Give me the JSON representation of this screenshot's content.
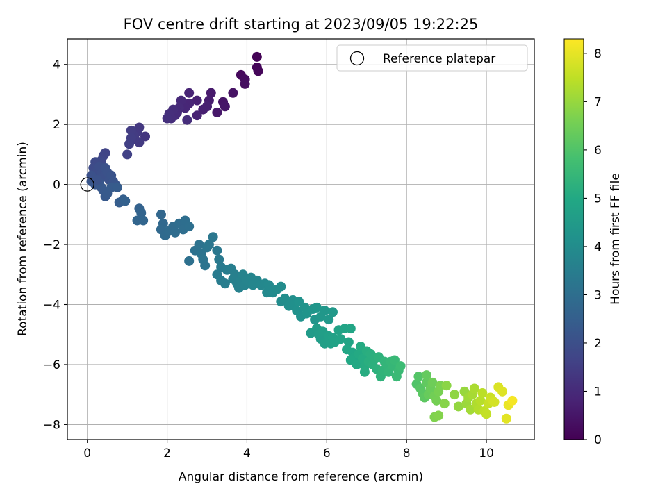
{
  "chart_data": {
    "type": "scatter",
    "title": "FOV centre drift starting at 2023/09/05 19:22:25",
    "xlabel": "Angular distance from reference (arcmin)",
    "ylabel": "Rotation from reference (arcmin)",
    "xlim": [
      -0.5,
      11.2
    ],
    "ylim": [
      -8.5,
      4.85
    ],
    "xticks": [
      0,
      2,
      4,
      6,
      8,
      10
    ],
    "xtick_labels": [
      "0",
      "2",
      "4",
      "6",
      "8",
      "10"
    ],
    "yticks": [
      -8,
      -6,
      -4,
      -2,
      0,
      2,
      4
    ],
    "ytick_labels": [
      "−8",
      "−6",
      "−4",
      "−2",
      "0",
      "2",
      "4"
    ],
    "grid": true,
    "legend": {
      "position": "top-right",
      "entries": [
        "Reference platepar"
      ]
    },
    "reference_point": {
      "x": 0,
      "y": 0
    },
    "colorbar": {
      "label": "Hours from first FF file",
      "min": 0,
      "max": 8.3,
      "ticks": [
        0,
        1,
        2,
        3,
        4,
        5,
        6,
        7,
        8
      ],
      "tick_labels": [
        "0",
        "1",
        "2",
        "3",
        "4",
        "5",
        "6",
        "7",
        "8"
      ],
      "colormap": "viridis"
    },
    "series": [
      {
        "points": [
          [
            4.25,
            4.25,
            0.05
          ],
          [
            4.25,
            3.9,
            0.1
          ],
          [
            4.28,
            3.78,
            0.12
          ],
          [
            3.85,
            3.65,
            0.2
          ],
          [
            3.95,
            3.5,
            0.25
          ],
          [
            3.95,
            3.35,
            0.3
          ],
          [
            3.65,
            3.05,
            0.4
          ],
          [
            3.4,
            2.75,
            0.45
          ],
          [
            3.45,
            2.6,
            0.5
          ],
          [
            3.25,
            2.4,
            0.55
          ],
          [
            3.1,
            3.05,
            0.6
          ],
          [
            3.05,
            2.8,
            0.65
          ],
          [
            3.0,
            2.6,
            0.7
          ],
          [
            2.9,
            2.5,
            0.72
          ],
          [
            2.75,
            2.8,
            0.78
          ],
          [
            2.75,
            2.3,
            0.8
          ],
          [
            2.55,
            3.05,
            0.85
          ],
          [
            2.55,
            2.7,
            0.88
          ],
          [
            2.45,
            2.55,
            0.9
          ],
          [
            2.35,
            2.8,
            0.95
          ],
          [
            2.3,
            2.55,
            1.0
          ],
          [
            2.25,
            2.4,
            1.02
          ],
          [
            2.2,
            2.3,
            1.05
          ],
          [
            2.15,
            2.5,
            1.08
          ],
          [
            2.1,
            2.2,
            1.1
          ],
          [
            2.05,
            2.35,
            1.12
          ],
          [
            2.0,
            2.2,
            1.15
          ],
          [
            2.5,
            2.15,
            1.1
          ],
          [
            1.45,
            1.6,
            1.3
          ],
          [
            1.3,
            1.9,
            1.35
          ],
          [
            1.25,
            1.75,
            1.38
          ],
          [
            1.3,
            1.4,
            1.4
          ],
          [
            1.2,
            1.5,
            1.42
          ],
          [
            1.15,
            1.65,
            1.45
          ],
          [
            1.1,
            1.8,
            1.48
          ],
          [
            1.1,
            1.55,
            1.5
          ],
          [
            1.05,
            1.35,
            1.55
          ],
          [
            1.0,
            1.0,
            1.6
          ],
          [
            0.45,
            1.05,
            1.65
          ],
          [
            0.4,
            0.95,
            1.7
          ],
          [
            0.35,
            0.8,
            1.75
          ],
          [
            0.3,
            0.75,
            1.8
          ],
          [
            0.25,
            0.7,
            1.82
          ],
          [
            0.2,
            0.75,
            1.85
          ],
          [
            0.15,
            0.55,
            1.88
          ],
          [
            0.15,
            0.35,
            1.9
          ],
          [
            0.2,
            0.2,
            1.92
          ],
          [
            0.25,
            0.45,
            1.95
          ],
          [
            0.3,
            0.6,
            1.98
          ],
          [
            0.35,
            0.35,
            2.0
          ],
          [
            0.4,
            0.25,
            2.02
          ],
          [
            0.45,
            0.55,
            2.05
          ],
          [
            0.5,
            0.4,
            2.08
          ],
          [
            0.55,
            0.15,
            2.1
          ],
          [
            0.6,
            0.3,
            2.12
          ],
          [
            0.65,
            0.1,
            2.15
          ],
          [
            0.7,
            0.0,
            2.18
          ],
          [
            0.1,
            0.1,
            2.2
          ],
          [
            0.2,
            0.0,
            2.22
          ],
          [
            0.3,
            0.05,
            2.25
          ],
          [
            0.35,
            -0.1,
            2.28
          ],
          [
            0.4,
            -0.2,
            2.3
          ],
          [
            0.45,
            -0.4,
            2.32
          ],
          [
            0.5,
            -0.3,
            2.35
          ],
          [
            0.6,
            -0.1,
            2.38
          ],
          [
            0.75,
            -0.1,
            2.4
          ],
          [
            0.8,
            -0.6,
            2.45
          ],
          [
            0.9,
            -0.5,
            2.5
          ],
          [
            0.95,
            -0.55,
            2.55
          ],
          [
            0.1,
            0.3,
            2.05
          ],
          [
            0.25,
            0.15,
            2.1
          ],
          [
            1.3,
            -0.8,
            2.6
          ],
          [
            1.35,
            -0.95,
            2.65
          ],
          [
            1.25,
            -1.2,
            2.68
          ],
          [
            1.4,
            -1.2,
            2.7
          ],
          [
            1.85,
            -1.0,
            2.75
          ],
          [
            1.9,
            -1.3,
            2.8
          ],
          [
            1.85,
            -1.5,
            2.82
          ],
          [
            1.95,
            -1.7,
            2.85
          ],
          [
            2.05,
            -1.55,
            2.88
          ],
          [
            2.15,
            -1.4,
            2.9
          ],
          [
            2.2,
            -1.6,
            2.92
          ],
          [
            2.3,
            -1.3,
            2.95
          ],
          [
            2.4,
            -1.5,
            2.98
          ],
          [
            2.45,
            -1.2,
            3.0
          ],
          [
            2.55,
            -1.4,
            3.02
          ],
          [
            2.55,
            -2.55,
            3.05
          ],
          [
            2.7,
            -2.2,
            3.1
          ],
          [
            2.8,
            -2.0,
            3.12
          ],
          [
            2.85,
            -2.3,
            3.15
          ],
          [
            2.9,
            -2.5,
            3.18
          ],
          [
            2.95,
            -2.7,
            3.2
          ],
          [
            3.0,
            -2.1,
            3.22
          ],
          [
            3.05,
            -2.0,
            3.25
          ],
          [
            3.15,
            -1.75,
            3.28
          ],
          [
            3.25,
            -2.2,
            3.3
          ],
          [
            3.3,
            -2.5,
            3.35
          ],
          [
            3.35,
            -2.75,
            3.4
          ],
          [
            3.25,
            -3.0,
            3.42
          ],
          [
            3.35,
            -3.2,
            3.45
          ],
          [
            3.45,
            -3.3,
            3.48
          ],
          [
            3.5,
            -2.85,
            3.5
          ],
          [
            3.6,
            -2.8,
            3.52
          ],
          [
            3.7,
            -3.0,
            3.55
          ],
          [
            3.65,
            -3.15,
            3.58
          ],
          [
            3.75,
            -3.3,
            3.6
          ],
          [
            3.8,
            -3.45,
            3.62
          ],
          [
            3.85,
            -3.2,
            3.65
          ],
          [
            3.9,
            -3.0,
            3.68
          ],
          [
            3.95,
            -3.35,
            3.7
          ],
          [
            4.0,
            -3.2,
            3.72
          ],
          [
            4.1,
            -3.1,
            3.75
          ],
          [
            4.15,
            -3.35,
            3.78
          ],
          [
            4.25,
            -3.2,
            3.8
          ],
          [
            4.35,
            -3.35,
            3.82
          ],
          [
            4.45,
            -3.3,
            3.85
          ],
          [
            4.5,
            -3.6,
            3.88
          ],
          [
            4.55,
            -3.35,
            3.9
          ],
          [
            4.65,
            -3.6,
            3.92
          ],
          [
            4.75,
            -3.5,
            3.95
          ],
          [
            4.85,
            -3.4,
            3.98
          ],
          [
            4.85,
            -3.9,
            4.0
          ],
          [
            4.95,
            -3.8,
            4.05
          ],
          [
            5.05,
            -4.05,
            4.08
          ],
          [
            5.15,
            -3.85,
            4.1
          ],
          [
            5.2,
            -4.0,
            4.12
          ],
          [
            5.25,
            -4.2,
            4.15
          ],
          [
            5.3,
            -3.9,
            4.18
          ],
          [
            5.35,
            -4.4,
            4.2
          ],
          [
            5.45,
            -4.1,
            4.22
          ],
          [
            5.5,
            -4.3,
            4.25
          ],
          [
            5.65,
            -4.15,
            4.28
          ],
          [
            5.7,
            -4.5,
            4.3
          ],
          [
            5.75,
            -4.1,
            4.32
          ],
          [
            5.85,
            -4.4,
            4.35
          ],
          [
            5.95,
            -4.2,
            4.38
          ],
          [
            6.05,
            -4.5,
            4.4
          ],
          [
            6.15,
            -4.25,
            4.42
          ],
          [
            5.6,
            -4.95,
            4.5
          ],
          [
            5.75,
            -4.8,
            4.55
          ],
          [
            5.8,
            -5.0,
            4.58
          ],
          [
            5.85,
            -5.15,
            4.6
          ],
          [
            5.9,
            -4.9,
            4.62
          ],
          [
            5.95,
            -5.3,
            4.65
          ],
          [
            6.05,
            -5.05,
            4.68
          ],
          [
            6.1,
            -5.3,
            4.7
          ],
          [
            6.15,
            -5.1,
            4.72
          ],
          [
            6.2,
            -5.25,
            4.75
          ],
          [
            6.3,
            -4.85,
            4.78
          ],
          [
            6.35,
            -5.15,
            4.8
          ],
          [
            6.45,
            -4.8,
            4.82
          ],
          [
            6.55,
            -5.25,
            4.85
          ],
          [
            6.6,
            -4.8,
            4.88
          ],
          [
            6.5,
            -5.5,
            4.9
          ],
          [
            6.65,
            -5.6,
            4.92
          ],
          [
            6.7,
            -5.75,
            4.95
          ],
          [
            6.6,
            -5.85,
            4.98
          ],
          [
            6.75,
            -6.0,
            5.0
          ],
          [
            6.8,
            -5.65,
            5.02
          ],
          [
            6.85,
            -5.4,
            5.05
          ],
          [
            6.9,
            -5.8,
            5.08
          ],
          [
            6.95,
            -6.05,
            5.1
          ],
          [
            6.95,
            -6.25,
            5.12
          ],
          [
            7.0,
            -5.55,
            5.15
          ],
          [
            7.05,
            -5.9,
            5.18
          ],
          [
            7.1,
            -5.65,
            5.2
          ],
          [
            7.15,
            -6.0,
            5.22
          ],
          [
            7.2,
            -5.8,
            5.25
          ],
          [
            7.25,
            -6.15,
            5.28
          ],
          [
            7.3,
            -5.75,
            5.3
          ],
          [
            7.35,
            -6.4,
            5.35
          ],
          [
            7.4,
            -6.2,
            5.38
          ],
          [
            7.45,
            -5.9,
            5.4
          ],
          [
            7.5,
            -6.0,
            5.42
          ],
          [
            7.55,
            -6.25,
            5.45
          ],
          [
            7.6,
            -5.9,
            5.48
          ],
          [
            7.65,
            -6.05,
            5.5
          ],
          [
            7.7,
            -5.85,
            5.55
          ],
          [
            7.75,
            -6.4,
            5.58
          ],
          [
            7.8,
            -6.2,
            5.6
          ],
          [
            7.85,
            -6.05,
            5.65
          ],
          [
            8.25,
            -6.65,
            6.0
          ],
          [
            8.3,
            -6.4,
            6.05
          ],
          [
            8.35,
            -6.8,
            6.1
          ],
          [
            8.4,
            -6.95,
            6.15
          ],
          [
            8.45,
            -7.1,
            6.2
          ],
          [
            8.5,
            -6.6,
            6.25
          ],
          [
            8.5,
            -6.35,
            6.3
          ],
          [
            8.55,
            -7.0,
            6.35
          ],
          [
            8.6,
            -6.8,
            6.4
          ],
          [
            8.65,
            -6.6,
            6.45
          ],
          [
            8.7,
            -7.05,
            6.5
          ],
          [
            8.75,
            -7.2,
            6.55
          ],
          [
            8.8,
            -6.9,
            6.6
          ],
          [
            8.85,
            -6.7,
            6.65
          ],
          [
            8.7,
            -7.75,
            6.7
          ],
          [
            8.8,
            -7.7,
            6.75
          ],
          [
            8.95,
            -7.3,
            6.8
          ],
          [
            9.0,
            -6.7,
            6.85
          ],
          [
            9.2,
            -7.0,
            6.9
          ],
          [
            9.3,
            -7.4,
            6.95
          ],
          [
            9.45,
            -6.9,
            7.0
          ],
          [
            9.5,
            -7.3,
            7.05
          ],
          [
            9.55,
            -7.1,
            7.1
          ],
          [
            9.6,
            -7.5,
            7.15
          ],
          [
            9.65,
            -7.0,
            7.2
          ],
          [
            9.7,
            -6.8,
            7.25
          ],
          [
            9.75,
            -7.3,
            7.3
          ],
          [
            9.8,
            -7.5,
            7.35
          ],
          [
            9.85,
            -7.2,
            7.4
          ],
          [
            9.9,
            -6.95,
            7.45
          ],
          [
            9.95,
            -7.55,
            7.5
          ],
          [
            10.0,
            -7.65,
            7.55
          ],
          [
            10.05,
            -7.3,
            7.6
          ],
          [
            10.1,
            -7.1,
            7.65
          ],
          [
            10.15,
            -7.2,
            7.7
          ],
          [
            10.2,
            -7.25,
            7.75
          ],
          [
            10.3,
            -6.75,
            7.85
          ],
          [
            10.4,
            -6.9,
            7.9
          ],
          [
            10.5,
            -7.8,
            7.95
          ],
          [
            10.55,
            -7.35,
            8.05
          ],
          [
            10.65,
            -7.2,
            8.2
          ]
        ]
      }
    ]
  }
}
